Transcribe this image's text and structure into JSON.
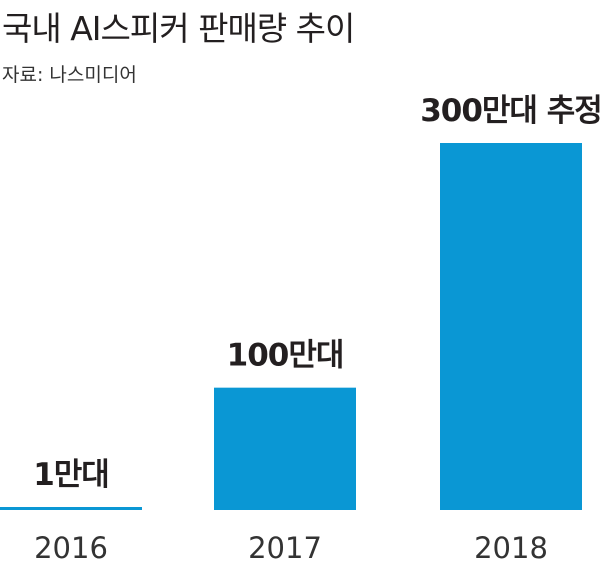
{
  "title": "국내 AI스피커 판매량 추이",
  "source": "자료: 나스미디어",
  "chart_data": {
    "type": "bar",
    "categories": [
      "2016",
      "2017",
      "2018"
    ],
    "values": [
      1,
      100,
      300
    ],
    "data_labels": [
      "1만대",
      "100만대",
      "300만대 추정"
    ],
    "unit": "만대",
    "ylim": [
      0,
      300
    ],
    "grid": false,
    "legend": "none",
    "colors": {
      "bar": "#0a97d4",
      "text": "#231f20"
    }
  }
}
